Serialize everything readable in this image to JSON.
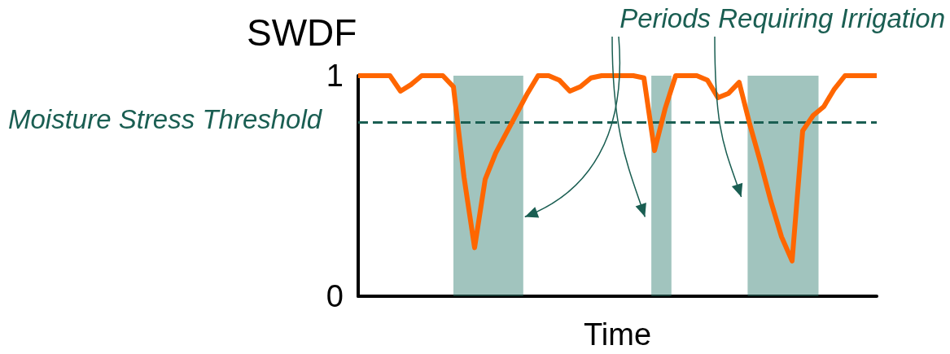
{
  "chart_data": {
    "type": "line",
    "title": "SWDF",
    "xlabel": "Time",
    "tick_labels": "y",
    "marker": "none",
    "line_style": "solid",
    "categories": [
      null,
      null,
      null,
      null,
      null,
      null,
      null,
      null,
      null,
      null,
      null,
      null,
      null,
      null,
      null,
      null,
      null,
      null,
      null,
      null,
      null,
      null,
      null,
      null,
      null,
      null,
      null,
      null,
      null,
      null,
      null,
      null,
      null,
      null,
      null,
      null,
      null,
      null,
      null,
      null,
      null,
      null,
      null,
      null,
      null,
      null,
      null,
      null,
      null,
      null
    ],
    "series": [
      {
        "color": "#ff6600",
        "values": [
          1,
          1,
          1,
          1,
          0.93,
          0.96,
          1,
          1,
          1,
          0.95,
          0.54,
          0.22,
          0.53,
          0.65,
          0.74,
          0.83,
          0.92,
          1,
          1,
          0.98,
          0.93,
          0.95,
          0.99,
          1,
          1,
          1,
          1,
          0.99,
          0.66,
          0.85,
          1,
          1,
          1,
          0.98,
          0.9,
          0.92,
          0.97,
          0.78,
          0.61,
          0.43,
          0.27,
          0.16,
          0.75,
          0.82,
          0.86,
          0.94,
          1,
          1,
          1,
          1
        ]
      }
    ],
    "ylim": [
      0,
      1
    ],
    "yticks": [
      0,
      1
    ],
    "ref_lines": [
      {
        "axis": "y",
        "value": 0.79,
        "label": "Moisture Stress Threshold",
        "color": "#1a5e52",
        "line_style": "dashed"
      }
    ],
    "annotations": [
      "Periods Requiring Irrigation"
    ]
  }
}
